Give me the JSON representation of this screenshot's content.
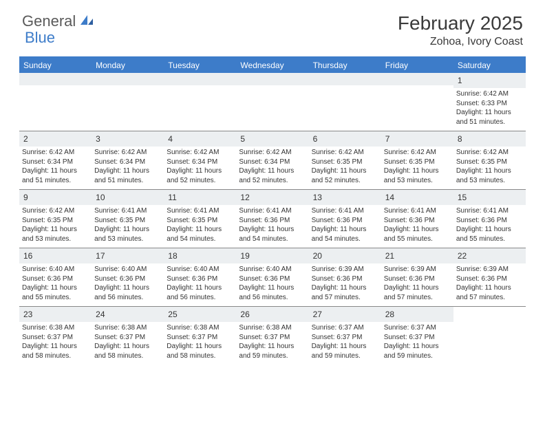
{
  "logo": {
    "part1": "General",
    "part2": "Blue"
  },
  "title": "February 2025",
  "location": "Zohoa, Ivory Coast",
  "colors": {
    "accent": "#3d7cc9",
    "header_text": "#ffffff",
    "daynum_bg": "#eceff1",
    "text": "#333333",
    "logo_gray": "#5a5a5a"
  },
  "day_headers": [
    "Sunday",
    "Monday",
    "Tuesday",
    "Wednesday",
    "Thursday",
    "Friday",
    "Saturday"
  ],
  "weeks": [
    [
      null,
      null,
      null,
      null,
      null,
      null,
      {
        "d": "1",
        "sr": "6:42 AM",
        "ss": "6:33 PM",
        "dl": "11 hours and 51 minutes."
      }
    ],
    [
      {
        "d": "2",
        "sr": "6:42 AM",
        "ss": "6:34 PM",
        "dl": "11 hours and 51 minutes."
      },
      {
        "d": "3",
        "sr": "6:42 AM",
        "ss": "6:34 PM",
        "dl": "11 hours and 51 minutes."
      },
      {
        "d": "4",
        "sr": "6:42 AM",
        "ss": "6:34 PM",
        "dl": "11 hours and 52 minutes."
      },
      {
        "d": "5",
        "sr": "6:42 AM",
        "ss": "6:34 PM",
        "dl": "11 hours and 52 minutes."
      },
      {
        "d": "6",
        "sr": "6:42 AM",
        "ss": "6:35 PM",
        "dl": "11 hours and 52 minutes."
      },
      {
        "d": "7",
        "sr": "6:42 AM",
        "ss": "6:35 PM",
        "dl": "11 hours and 53 minutes."
      },
      {
        "d": "8",
        "sr": "6:42 AM",
        "ss": "6:35 PM",
        "dl": "11 hours and 53 minutes."
      }
    ],
    [
      {
        "d": "9",
        "sr": "6:42 AM",
        "ss": "6:35 PM",
        "dl": "11 hours and 53 minutes."
      },
      {
        "d": "10",
        "sr": "6:41 AM",
        "ss": "6:35 PM",
        "dl": "11 hours and 53 minutes."
      },
      {
        "d": "11",
        "sr": "6:41 AM",
        "ss": "6:35 PM",
        "dl": "11 hours and 54 minutes."
      },
      {
        "d": "12",
        "sr": "6:41 AM",
        "ss": "6:36 PM",
        "dl": "11 hours and 54 minutes."
      },
      {
        "d": "13",
        "sr": "6:41 AM",
        "ss": "6:36 PM",
        "dl": "11 hours and 54 minutes."
      },
      {
        "d": "14",
        "sr": "6:41 AM",
        "ss": "6:36 PM",
        "dl": "11 hours and 55 minutes."
      },
      {
        "d": "15",
        "sr": "6:41 AM",
        "ss": "6:36 PM",
        "dl": "11 hours and 55 minutes."
      }
    ],
    [
      {
        "d": "16",
        "sr": "6:40 AM",
        "ss": "6:36 PM",
        "dl": "11 hours and 55 minutes."
      },
      {
        "d": "17",
        "sr": "6:40 AM",
        "ss": "6:36 PM",
        "dl": "11 hours and 56 minutes."
      },
      {
        "d": "18",
        "sr": "6:40 AM",
        "ss": "6:36 PM",
        "dl": "11 hours and 56 minutes."
      },
      {
        "d": "19",
        "sr": "6:40 AM",
        "ss": "6:36 PM",
        "dl": "11 hours and 56 minutes."
      },
      {
        "d": "20",
        "sr": "6:39 AM",
        "ss": "6:36 PM",
        "dl": "11 hours and 57 minutes."
      },
      {
        "d": "21",
        "sr": "6:39 AM",
        "ss": "6:36 PM",
        "dl": "11 hours and 57 minutes."
      },
      {
        "d": "22",
        "sr": "6:39 AM",
        "ss": "6:36 PM",
        "dl": "11 hours and 57 minutes."
      }
    ],
    [
      {
        "d": "23",
        "sr": "6:38 AM",
        "ss": "6:37 PM",
        "dl": "11 hours and 58 minutes."
      },
      {
        "d": "24",
        "sr": "6:38 AM",
        "ss": "6:37 PM",
        "dl": "11 hours and 58 minutes."
      },
      {
        "d": "25",
        "sr": "6:38 AM",
        "ss": "6:37 PM",
        "dl": "11 hours and 58 minutes."
      },
      {
        "d": "26",
        "sr": "6:38 AM",
        "ss": "6:37 PM",
        "dl": "11 hours and 59 minutes."
      },
      {
        "d": "27",
        "sr": "6:37 AM",
        "ss": "6:37 PM",
        "dl": "11 hours and 59 minutes."
      },
      {
        "d": "28",
        "sr": "6:37 AM",
        "ss": "6:37 PM",
        "dl": "11 hours and 59 minutes."
      },
      null
    ]
  ],
  "labels": {
    "sunrise": "Sunrise:",
    "sunset": "Sunset:",
    "daylight": "Daylight:"
  }
}
